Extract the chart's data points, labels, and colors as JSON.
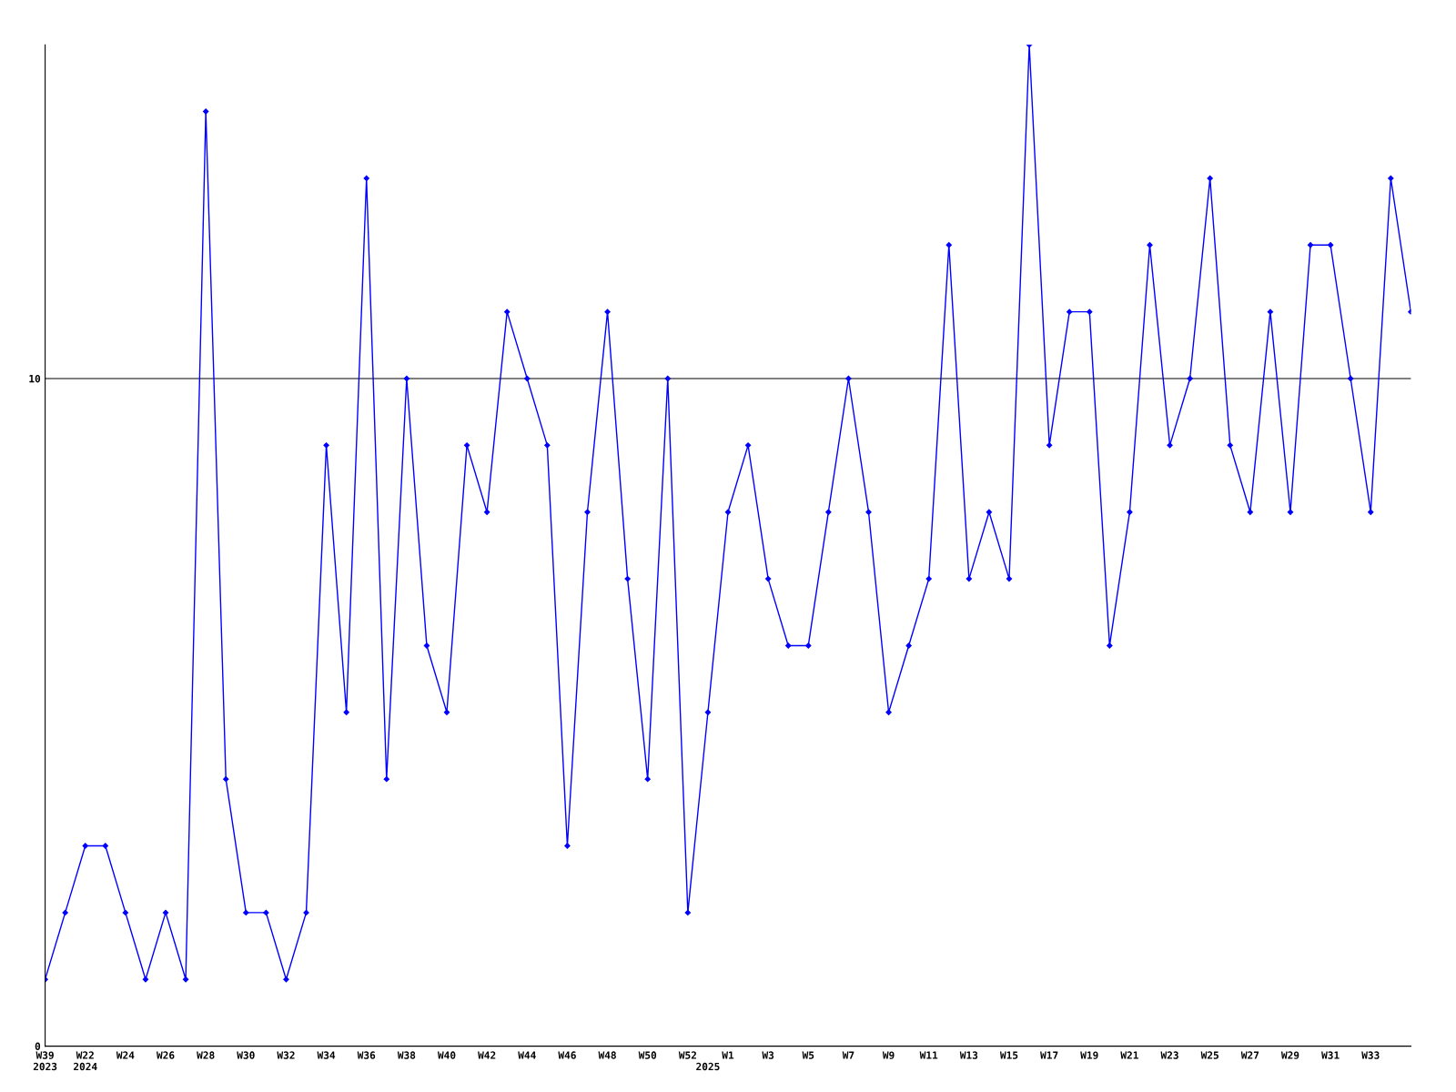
{
  "chart_data": {
    "type": "line",
    "categories": [
      "W39\n2023",
      null,
      "W22\n2024",
      null,
      "W24",
      null,
      "W26",
      null,
      "W28",
      null,
      "W30",
      null,
      "W32",
      null,
      "W34",
      null,
      "W36",
      null,
      "W38",
      null,
      "W40",
      null,
      "W42",
      null,
      "W44",
      null,
      "W46",
      null,
      "W48",
      null,
      "W50",
      null,
      "W52",
      "\n2025",
      "W1",
      null,
      "W3",
      null,
      "W5",
      null,
      "W7",
      null,
      "W9",
      null,
      "W11",
      null,
      "W13",
      null,
      "W15",
      null,
      "W17",
      null,
      "W19",
      null,
      "W21",
      null,
      "W23",
      null,
      "W25",
      null,
      "W27",
      null,
      "W29",
      null,
      "W31",
      null,
      "W33",
      null,
      null
    ],
    "series": [
      {
        "color": "#0000ff",
        "values": [
          1,
          2,
          3,
          3,
          2,
          1,
          2,
          1,
          14,
          4,
          2,
          2,
          1,
          2,
          9,
          5,
          13,
          4,
          10,
          6,
          5,
          9,
          8,
          11,
          10,
          9,
          3,
          8,
          11,
          7,
          4,
          10,
          2,
          5,
          8,
          9,
          7,
          6,
          6,
          8,
          10,
          8,
          5,
          6,
          7,
          12,
          7,
          8,
          7,
          15,
          9,
          11,
          11,
          6,
          8,
          12,
          9,
          10,
          13,
          9,
          8,
          11,
          8,
          12,
          12,
          10,
          8,
          13,
          11
        ]
      }
    ],
    "ylim": [
      0,
      15
    ],
    "yticks": [
      0,
      10
    ],
    "grid": "y",
    "marker": "diamond",
    "line_style": "solid"
  }
}
